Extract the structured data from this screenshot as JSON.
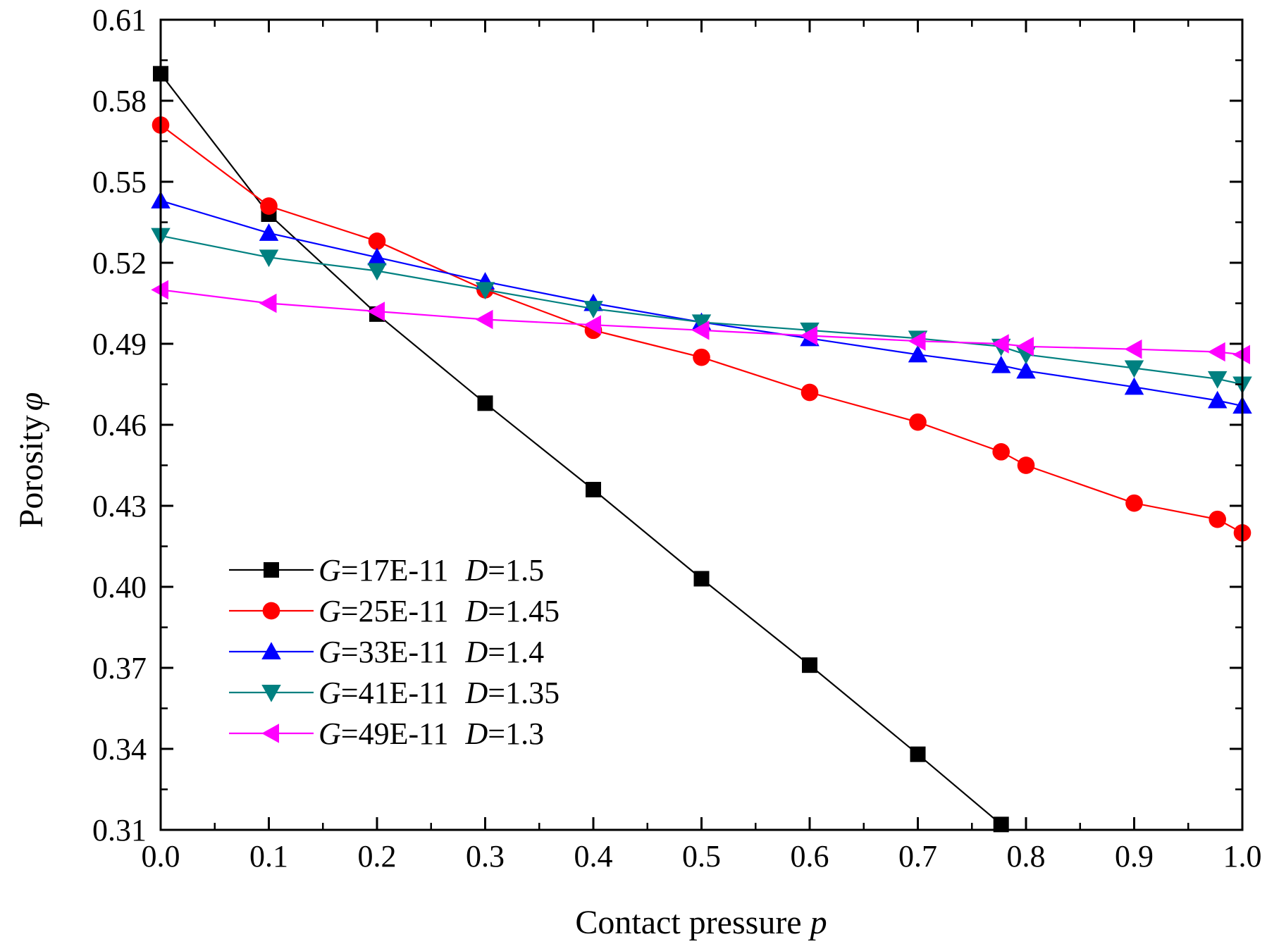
{
  "chart_data": {
    "type": "line",
    "xlabel": "Contact pressure",
    "xlabel_symbol": "p",
    "ylabel": "Porosity",
    "ylabel_symbol": "φ",
    "xlim": [
      0.0,
      1.0
    ],
    "ylim": [
      0.31,
      0.61
    ],
    "xticks": [
      "0.0",
      "0.1",
      "0.2",
      "0.3",
      "0.4",
      "0.5",
      "0.6",
      "0.7",
      "0.8",
      "0.9",
      "1.0"
    ],
    "yticks": [
      "0.31",
      "0.34",
      "0.37",
      "0.40",
      "0.43",
      "0.46",
      "0.49",
      "0.52",
      "0.55",
      "0.58",
      "0.61"
    ],
    "grid": false,
    "legend_position": "bottom-left",
    "series": [
      {
        "g_label": "G",
        "g_value": "=17E-11",
        "d_label": "D",
        "d_value": "=1.5",
        "color": "#000000",
        "marker": "square",
        "x": [
          0.0,
          0.1,
          0.2,
          0.3,
          0.4,
          0.5,
          0.6,
          0.7,
          0.777
        ],
        "y": [
          0.59,
          0.538,
          0.501,
          0.468,
          0.436,
          0.403,
          0.371,
          0.338,
          0.312
        ]
      },
      {
        "g_label": "G",
        "g_value": "=25E-11",
        "d_label": "D",
        "d_value": "=1.45",
        "color": "#ff0000",
        "marker": "circle",
        "x": [
          0.0,
          0.1,
          0.2,
          0.3,
          0.4,
          0.5,
          0.6,
          0.7,
          0.777,
          0.8,
          0.9,
          0.977,
          1.0
        ],
        "y": [
          0.571,
          0.541,
          0.528,
          0.51,
          0.495,
          0.485,
          0.472,
          0.461,
          0.45,
          0.445,
          0.431,
          0.425,
          0.42
        ]
      },
      {
        "g_label": "G",
        "g_value": "=33E-11",
        "d_label": "D",
        "d_value": "=1.4",
        "color": "#0000ff",
        "marker": "triangle-up",
        "x": [
          0.0,
          0.1,
          0.2,
          0.3,
          0.4,
          0.5,
          0.6,
          0.7,
          0.777,
          0.8,
          0.9,
          0.977,
          1.0
        ],
        "y": [
          0.543,
          0.531,
          0.522,
          0.513,
          0.505,
          0.498,
          0.492,
          0.486,
          0.482,
          0.48,
          0.474,
          0.469,
          0.467
        ]
      },
      {
        "g_label": "G",
        "g_value": "=41E-11",
        "d_label": "D",
        "d_value": "=1.35",
        "color": "#008080",
        "marker": "triangle-down",
        "x": [
          0.0,
          0.1,
          0.2,
          0.3,
          0.4,
          0.5,
          0.6,
          0.7,
          0.777,
          0.8,
          0.9,
          0.977,
          1.0
        ],
        "y": [
          0.53,
          0.522,
          0.517,
          0.51,
          0.503,
          0.498,
          0.495,
          0.492,
          0.489,
          0.486,
          0.481,
          0.477,
          0.475
        ]
      },
      {
        "g_label": "G",
        "g_value": "=49E-11",
        "d_label": "D",
        "d_value": "=1.3",
        "color": "#ff00ff",
        "marker": "triangle-left",
        "x": [
          0.0,
          0.1,
          0.2,
          0.3,
          0.4,
          0.5,
          0.6,
          0.7,
          0.777,
          0.8,
          0.9,
          0.977,
          1.0
        ],
        "y": [
          0.51,
          0.505,
          0.502,
          0.499,
          0.497,
          0.495,
          0.493,
          0.491,
          0.49,
          0.489,
          0.488,
          0.487,
          0.486
        ]
      }
    ]
  }
}
